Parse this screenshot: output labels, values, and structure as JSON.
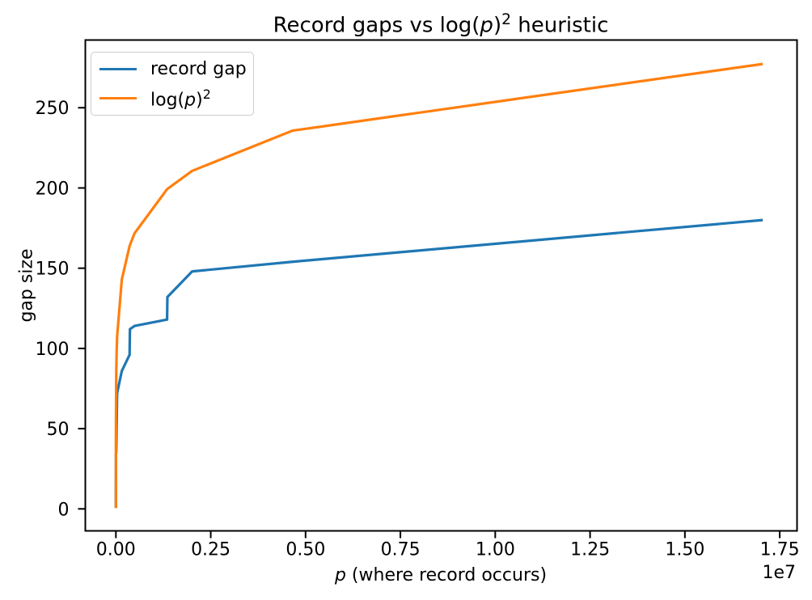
{
  "figure": {
    "background": "#ffffff",
    "text_color": "#000000",
    "spine_color": "#000000"
  },
  "chart_data": {
    "type": "line",
    "title": "Record gaps vs log(p)² heuristic",
    "title_parts": {
      "pre": "Record gaps vs log(",
      "var": "p",
      "post": ")",
      "sup": "2",
      "tail": " heuristic"
    },
    "xlabel": "p (where record occurs)",
    "xlabel_parts": {
      "var": "p",
      "tail": " (where record occurs)"
    },
    "ylabel": "gap size",
    "x_axis_offset_label": "1e7",
    "grid": false,
    "legend_position": "upper left",
    "xlim": [
      -806000,
      17956000
    ],
    "ylim": [
      -13.7,
      292.2
    ],
    "x_ticks": [
      0,
      2500000,
      5000000,
      7500000,
      10000000,
      12500000,
      15000000,
      17500000
    ],
    "x_tick_labels": [
      "0.00",
      "0.25",
      "0.50",
      "0.75",
      "1.00",
      "1.25",
      "1.50",
      "1.75"
    ],
    "y_ticks": [
      0,
      50,
      100,
      150,
      200,
      250
    ],
    "y_tick_labels": [
      "0",
      "50",
      "100",
      "150",
      "200",
      "250"
    ],
    "x": [
      2,
      3,
      7,
      23,
      89,
      113,
      523,
      887,
      1129,
      1327,
      9551,
      15683,
      19609,
      31397,
      155921,
      360653,
      370261,
      492113,
      1349533,
      1357201,
      2010733,
      4652353,
      17051707
    ],
    "series": [
      {
        "name": "record gap",
        "color": "#1f77b4",
        "values": [
          1,
          2,
          4,
          6,
          8,
          14,
          18,
          20,
          22,
          34,
          36,
          44,
          52,
          72,
          86,
          96,
          112,
          114,
          118,
          132,
          148,
          154,
          180
        ]
      },
      {
        "name": "log(p)²",
        "color": "#ff7f0e",
        "values": [
          0.48,
          1.21,
          3.79,
          9.83,
          20.15,
          22.35,
          39.18,
          46.07,
          49.41,
          51.7,
          83.99,
          93.32,
          97.69,
          107.22,
          142.97,
          163.73,
          164.4,
          171.77,
          199.24,
          199.4,
          210.66,
          235.71,
          277.28
        ]
      }
    ],
    "legend": {
      "entries": [
        {
          "label": "record gap",
          "color": "#1f77b4"
        },
        {
          "label": "log(p)²",
          "label_pre": "log(",
          "label_var": "p",
          "label_post": ")",
          "label_sup": "2",
          "color": "#ff7f0e"
        }
      ]
    }
  }
}
